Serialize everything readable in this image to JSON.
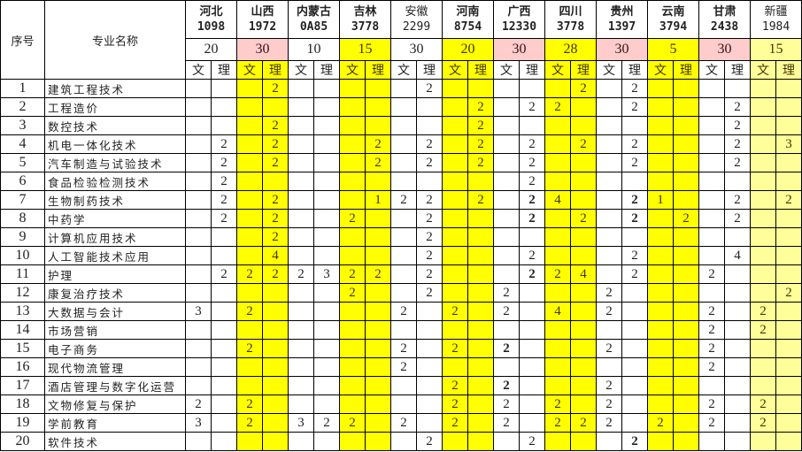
{
  "header": {
    "no_label": "序号",
    "name_label": "专业名称",
    "wen": "文",
    "li": "理"
  },
  "colors": {
    "yellow": "#ffff00",
    "pink": "#ffcccc",
    "light_yellow": "#ffff99"
  },
  "provinces": [
    {
      "name": "河北",
      "code": "1098",
      "quota": "20",
      "quota_color": "white",
      "col_color": "white",
      "bold": true
    },
    {
      "name": "山西",
      "code": "1972",
      "quota": "30",
      "quota_color": "pink",
      "col_color": "yellow",
      "bold": true
    },
    {
      "name": "内蒙古",
      "code": "0A85",
      "quota": "10",
      "quota_color": "white",
      "col_color": "white",
      "bold": true
    },
    {
      "name": "吉林",
      "code": "3778",
      "quota": "15",
      "quota_color": "yellow",
      "col_color": "yellow",
      "bold": true
    },
    {
      "name": "安徽",
      "code": "2299",
      "quota": "30",
      "quota_color": "white",
      "col_color": "white",
      "bold": false
    },
    {
      "name": "河南",
      "code": "8754",
      "quota": "20",
      "quota_color": "yellow",
      "col_color": "yellow",
      "bold": true
    },
    {
      "name": "广西",
      "code": "12330",
      "quota": "30",
      "quota_color": "pink",
      "col_color": "white",
      "bold": true
    },
    {
      "name": "四川",
      "code": "3778",
      "quota": "28",
      "quota_color": "yellow",
      "col_color": "yellow",
      "bold": true
    },
    {
      "name": "贵州",
      "code": "1397",
      "quota": "30",
      "quota_color": "pink",
      "col_color": "white",
      "bold": true
    },
    {
      "name": "云南",
      "code": "3794",
      "quota": "5",
      "quota_color": "yellow",
      "col_color": "yellow",
      "bold": true
    },
    {
      "name": "甘肃",
      "code": "2438",
      "quota": "30",
      "quota_color": "pink",
      "col_color": "white",
      "bold": true
    },
    {
      "name": "新疆",
      "code": "1984",
      "quota": "15",
      "quota_color": "light_yellow",
      "col_color": "light_yellow",
      "bold": false
    }
  ],
  "rows": [
    {
      "no": "1",
      "name": "建筑工程技术",
      "cells": [
        "",
        "",
        "",
        "2",
        "",
        "",
        "",
        "",
        "",
        "2",
        "",
        "",
        "",
        "",
        "",
        "2",
        "",
        "2",
        "",
        "",
        "",
        "",
        "",
        ""
      ],
      "bold": []
    },
    {
      "no": "2",
      "name": "工程造价",
      "cells": [
        "",
        "",
        "",
        "",
        "",
        "",
        "",
        "",
        "",
        "",
        "",
        "2",
        "",
        "2",
        "2",
        "",
        "",
        "2",
        "",
        "",
        "",
        "2",
        "",
        ""
      ],
      "bold": []
    },
    {
      "no": "3",
      "name": "数控技术",
      "cells": [
        "",
        "",
        "",
        "2",
        "",
        "",
        "",
        "",
        "",
        "",
        "",
        "2",
        "",
        "",
        "",
        "",
        "",
        "",
        "",
        "",
        "",
        "2",
        "",
        ""
      ],
      "bold": []
    },
    {
      "no": "4",
      "name": "机电一体化技术",
      "cells": [
        "",
        "2",
        "",
        "2",
        "",
        "",
        "",
        "2",
        "",
        "2",
        "",
        "2",
        "",
        "2",
        "",
        "2",
        "",
        "2",
        "",
        "",
        "",
        "2",
        "",
        "3"
      ],
      "bold": []
    },
    {
      "no": "5",
      "name": "汽车制造与试验技术",
      "cells": [
        "",
        "2",
        "",
        "2",
        "",
        "",
        "",
        "2",
        "",
        "2",
        "",
        "2",
        "",
        "2",
        "",
        "",
        "",
        "2",
        "",
        "",
        "",
        "2",
        "",
        ""
      ],
      "bold": []
    },
    {
      "no": "6",
      "name": "食品检验检测技术",
      "cells": [
        "",
        "2",
        "",
        "",
        "",
        "",
        "",
        "",
        "",
        "",
        "",
        "",
        "",
        "2",
        "",
        "",
        "",
        "",
        "",
        "",
        "",
        "",
        "",
        ""
      ],
      "bold": []
    },
    {
      "no": "7",
      "name": "生物制药技术",
      "cells": [
        "",
        "2",
        "",
        "2",
        "",
        "",
        "",
        "1",
        "2",
        "2",
        "",
        "2",
        "",
        "2",
        "4",
        "",
        "",
        "2",
        "1",
        "",
        "",
        "2",
        "",
        "2"
      ],
      "bold": [
        13,
        17
      ]
    },
    {
      "no": "8",
      "name": "中药学",
      "cells": [
        "",
        "2",
        "",
        "2",
        "",
        "",
        "2",
        "",
        "",
        "2",
        "",
        "",
        "",
        "2",
        "",
        "2",
        "",
        "2",
        "",
        "2",
        "",
        "2",
        "",
        ""
      ],
      "bold": [
        13,
        17
      ]
    },
    {
      "no": "9",
      "name": "计算机应用技术",
      "cells": [
        "",
        "",
        "",
        "2",
        "",
        "",
        "",
        "",
        "",
        "2",
        "",
        "",
        "",
        "",
        "",
        "",
        "",
        "",
        "",
        "",
        "",
        "",
        "",
        ""
      ],
      "bold": []
    },
    {
      "no": "10",
      "name": "人工智能技术应用",
      "cells": [
        "",
        "",
        "",
        "4",
        "",
        "",
        "",
        "",
        "",
        "2",
        "",
        "",
        "",
        "2",
        "",
        "",
        "",
        "2",
        "",
        "",
        "",
        "4",
        "",
        ""
      ],
      "bold": []
    },
    {
      "no": "11",
      "name": "护理",
      "cells": [
        "",
        "2",
        "2",
        "2",
        "2",
        "3",
        "2",
        "2",
        "",
        "2",
        "",
        "",
        "",
        "2",
        "2",
        "4",
        "",
        "2",
        "",
        "",
        "2",
        "",
        "",
        ""
      ],
      "bold": [
        13
      ]
    },
    {
      "no": "12",
      "name": "康复治疗技术",
      "cells": [
        "",
        "",
        "",
        "",
        "",
        "",
        "2",
        "",
        "",
        "2",
        "",
        "",
        "2",
        "",
        "",
        "",
        "2",
        "",
        "",
        "",
        "",
        "",
        "",
        "2"
      ],
      "bold": []
    },
    {
      "no": "13",
      "name": "大数据与会计",
      "cells": [
        "3",
        "",
        "2",
        "",
        "",
        "",
        "",
        "",
        "2",
        "",
        "2",
        "",
        "2",
        "",
        "4",
        "",
        "2",
        "",
        "",
        "",
        "2",
        "",
        "2",
        ""
      ],
      "bold": []
    },
    {
      "no": "14",
      "name": "市场营销",
      "cells": [
        "",
        "",
        "",
        "",
        "",
        "",
        "",
        "",
        "",
        "",
        "",
        "",
        "",
        "",
        "",
        "",
        "",
        "",
        "",
        "",
        "2",
        "",
        "2",
        ""
      ],
      "bold": []
    },
    {
      "no": "15",
      "name": "电子商务",
      "cells": [
        "",
        "",
        "2",
        "",
        "",
        "",
        "",
        "",
        "2",
        "",
        "2",
        "",
        "2",
        "",
        "",
        "",
        "2",
        "",
        "",
        "",
        "2",
        "",
        "",
        ""
      ],
      "bold": [
        12
      ]
    },
    {
      "no": "16",
      "name": "现代物流管理",
      "cells": [
        "",
        "",
        "",
        "",
        "",
        "",
        "",
        "",
        "2",
        "",
        "",
        "",
        "",
        "",
        "",
        "",
        "",
        "",
        "",
        "",
        "2",
        "",
        "",
        ""
      ],
      "bold": []
    },
    {
      "no": "17",
      "name": "酒店管理与数字化运营",
      "cells": [
        "",
        "",
        "",
        "",
        "",
        "",
        "",
        "",
        "",
        "",
        "2",
        "",
        "2",
        "",
        "",
        "",
        "2",
        "",
        "",
        "",
        "",
        "",
        "",
        ""
      ],
      "bold": [
        12
      ]
    },
    {
      "no": "18",
      "name": "文物修复与保护",
      "cells": [
        "2",
        "",
        "2",
        "",
        "",
        "",
        "",
        "",
        "",
        "",
        "2",
        "",
        "2",
        "",
        "2",
        "",
        "2",
        "",
        "",
        "",
        "2",
        "",
        "2",
        ""
      ],
      "bold": []
    },
    {
      "no": "19",
      "name": "学前教育",
      "cells": [
        "3",
        "",
        "2",
        "",
        "3",
        "2",
        "2",
        "",
        "2",
        "",
        "2",
        "",
        "2",
        "",
        "2",
        "2",
        "2",
        "",
        "2",
        "",
        "2",
        "",
        "2",
        ""
      ],
      "bold": []
    },
    {
      "no": "20",
      "name": "软件技术",
      "cells": [
        "",
        "",
        "",
        "",
        "",
        "",
        "",
        "",
        "",
        "2",
        "",
        "",
        "",
        "2",
        "",
        "",
        "",
        "2",
        "",
        "",
        "",
        "",
        "",
        ""
      ],
      "bold": [
        17
      ]
    }
  ]
}
